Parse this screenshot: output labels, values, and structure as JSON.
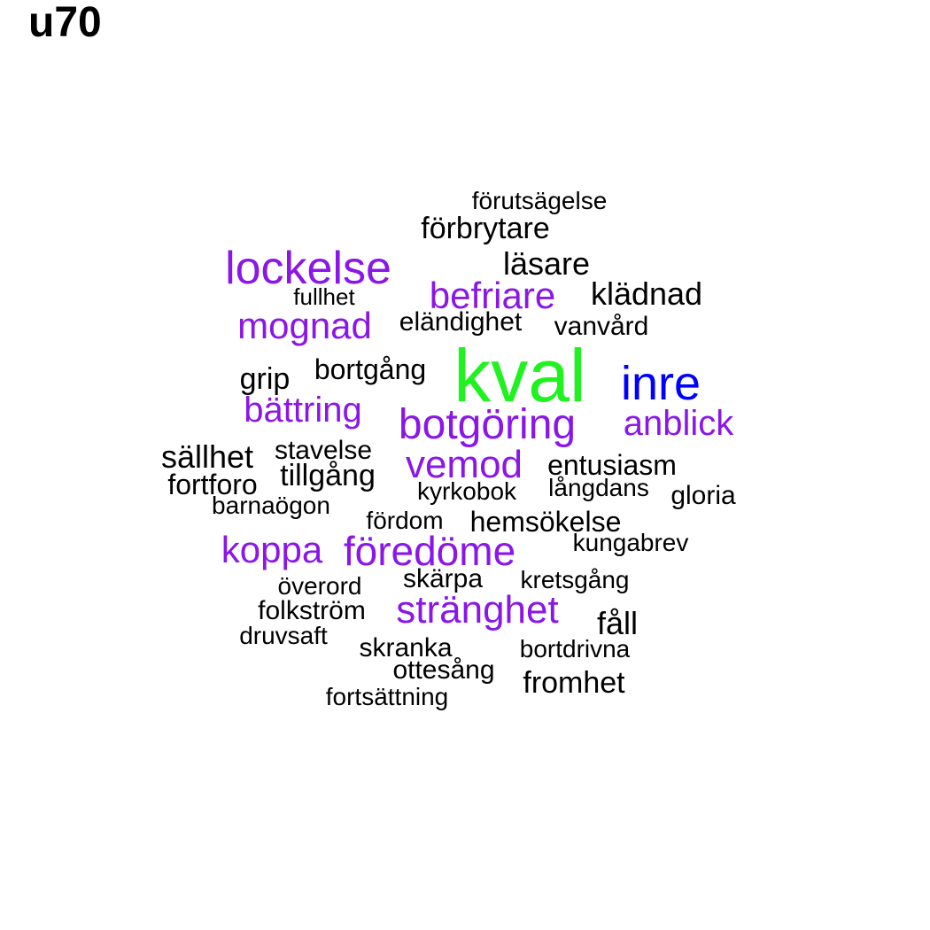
{
  "title": "u70",
  "colors": {
    "black": "#000000",
    "purple": "#8a16e8",
    "blue": "#0000ff",
    "green": "#1ff21f"
  },
  "words": [
    {
      "text": "förutsägelse",
      "color": "black"
    },
    {
      "text": "förbrytare",
      "color": "black"
    },
    {
      "text": "lockelse",
      "color": "purple"
    },
    {
      "text": "läsare",
      "color": "black"
    },
    {
      "text": "befriare",
      "color": "purple"
    },
    {
      "text": "klädnad",
      "color": "black"
    },
    {
      "text": "fullhet",
      "color": "black"
    },
    {
      "text": "mognad",
      "color": "purple"
    },
    {
      "text": "eländighet",
      "color": "black"
    },
    {
      "text": "vanvård",
      "color": "black"
    },
    {
      "text": "kval",
      "color": "green"
    },
    {
      "text": "inre",
      "color": "blue"
    },
    {
      "text": "grip",
      "color": "black"
    },
    {
      "text": "bortgång",
      "color": "black"
    },
    {
      "text": "bättring",
      "color": "purple"
    },
    {
      "text": "botgöring",
      "color": "purple"
    },
    {
      "text": "anblick",
      "color": "purple"
    },
    {
      "text": "sällhet",
      "color": "black"
    },
    {
      "text": "stavelse",
      "color": "black"
    },
    {
      "text": "vemod",
      "color": "purple"
    },
    {
      "text": "entusiasm",
      "color": "black"
    },
    {
      "text": "tillgång",
      "color": "black"
    },
    {
      "text": "fortforo",
      "color": "black"
    },
    {
      "text": "kyrkobok",
      "color": "black"
    },
    {
      "text": "långdans",
      "color": "black"
    },
    {
      "text": "gloria",
      "color": "black"
    },
    {
      "text": "barnaögon",
      "color": "black"
    },
    {
      "text": "fördom",
      "color": "black"
    },
    {
      "text": "hemsökelse",
      "color": "black"
    },
    {
      "text": "kungabrev",
      "color": "black"
    },
    {
      "text": "koppa",
      "color": "purple"
    },
    {
      "text": "föredöme",
      "color": "purple"
    },
    {
      "text": "skärpa",
      "color": "black"
    },
    {
      "text": "kretsgång",
      "color": "black"
    },
    {
      "text": "överord",
      "color": "black"
    },
    {
      "text": "folkström",
      "color": "black"
    },
    {
      "text": "stränghet",
      "color": "purple"
    },
    {
      "text": "fåll",
      "color": "black"
    },
    {
      "text": "druvsaft",
      "color": "black"
    },
    {
      "text": "skranka",
      "color": "black"
    },
    {
      "text": "bortdrivna",
      "color": "black"
    },
    {
      "text": "ottesång",
      "color": "black"
    },
    {
      "text": "fromhet",
      "color": "black"
    },
    {
      "text": "fortsättning",
      "color": "black"
    }
  ]
}
